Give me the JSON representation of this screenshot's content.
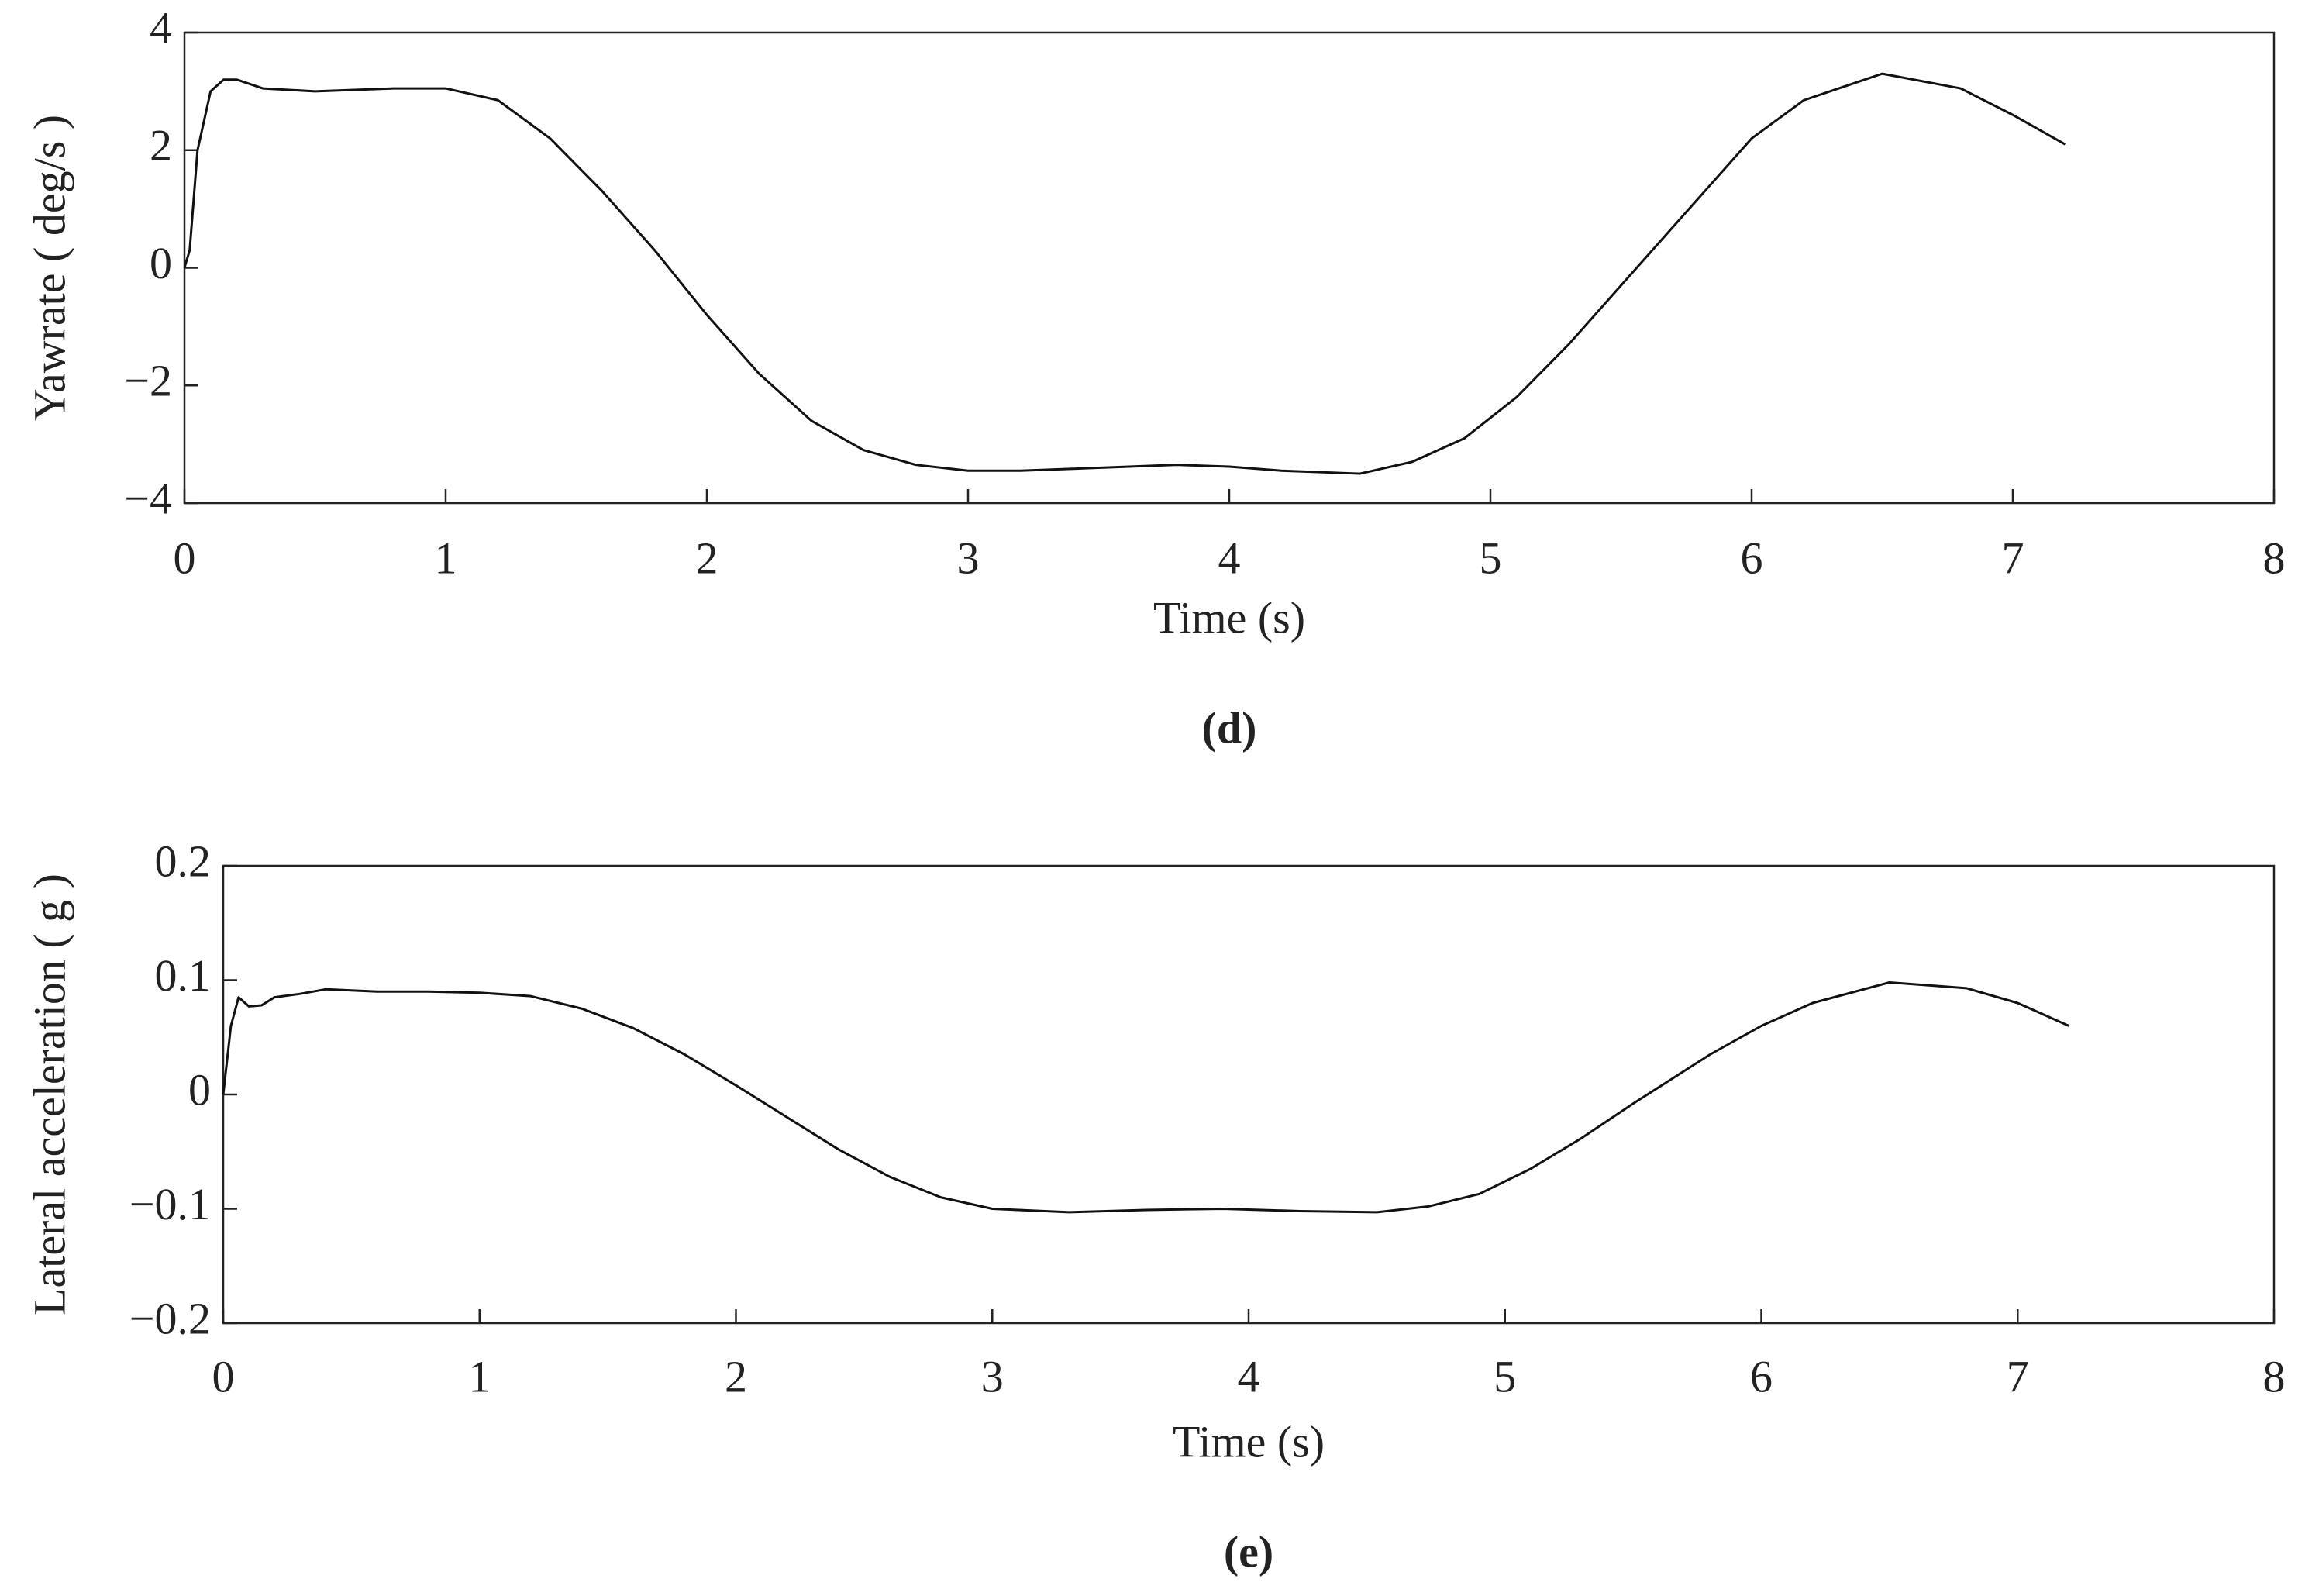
{
  "chart_data": [
    {
      "type": "line",
      "caption": "(d)",
      "xlabel": "Time (s)",
      "ylabel": "Yawrate ( deg/s )",
      "xlim": [
        0,
        8
      ],
      "xticks": [
        0,
        1,
        2,
        3,
        4,
        5,
        6,
        7,
        8
      ],
      "ylim": [
        -4,
        4
      ],
      "yticks": [
        {
          "value": -4,
          "label": "−4"
        },
        {
          "value": -2,
          "label": "−2"
        },
        0,
        2,
        4
      ],
      "grid": false,
      "series": [
        {
          "color": "#111111",
          "x": [
            0,
            0.02,
            0.05,
            0.1,
            0.15,
            0.2,
            0.3,
            0.5,
            0.8,
            1.0,
            1.2,
            1.4,
            1.6,
            1.8,
            2.0,
            2.2,
            2.4,
            2.6,
            2.8,
            3.0,
            3.2,
            3.5,
            3.8,
            4.0,
            4.2,
            4.5,
            4.7,
            4.9,
            5.1,
            5.3,
            5.5,
            5.8,
            6.0,
            6.2,
            6.5,
            6.8,
            7.0,
            7.2
          ],
          "values": [
            0,
            0.3,
            2.0,
            3.0,
            3.2,
            3.2,
            3.05,
            3.0,
            3.05,
            3.05,
            2.85,
            2.2,
            1.3,
            0.3,
            -0.8,
            -1.8,
            -2.6,
            -3.1,
            -3.35,
            -3.45,
            -3.45,
            -3.4,
            -3.35,
            -3.38,
            -3.45,
            -3.5,
            -3.3,
            -2.9,
            -2.2,
            -1.3,
            -0.3,
            1.2,
            2.2,
            2.85,
            3.3,
            3.05,
            2.6,
            2.1
          ]
        }
      ]
    },
    {
      "type": "line",
      "caption": "(e)",
      "xlabel": "Time (s)",
      "ylabel": "Lateral acceleration ( g )",
      "xlim": [
        0,
        8
      ],
      "xticks": [
        0,
        1,
        2,
        3,
        4,
        5,
        6,
        7,
        8
      ],
      "ylim": [
        -0.2,
        0.2
      ],
      "yticks": [
        {
          "value": -0.2,
          "label": "−0.2"
        },
        {
          "value": -0.1,
          "label": "−0.1"
        },
        0,
        0.1,
        0.2
      ],
      "grid": false,
      "series": [
        {
          "color": "#111111",
          "x": [
            0,
            0.03,
            0.06,
            0.1,
            0.15,
            0.2,
            0.3,
            0.4,
            0.6,
            0.8,
            1.0,
            1.2,
            1.4,
            1.6,
            1.8,
            2.0,
            2.2,
            2.4,
            2.6,
            2.8,
            3.0,
            3.3,
            3.6,
            3.9,
            4.2,
            4.5,
            4.7,
            4.9,
            5.1,
            5.3,
            5.5,
            5.8,
            6.0,
            6.2,
            6.5,
            6.8,
            7.0,
            7.2
          ],
          "values": [
            0,
            0.06,
            0.085,
            0.077,
            0.078,
            0.085,
            0.088,
            0.092,
            0.09,
            0.09,
            0.089,
            0.086,
            0.075,
            0.058,
            0.035,
            0.008,
            -0.02,
            -0.048,
            -0.072,
            -0.09,
            -0.1,
            -0.103,
            -0.101,
            -0.1,
            -0.102,
            -0.103,
            -0.098,
            -0.087,
            -0.065,
            -0.038,
            -0.008,
            0.035,
            0.06,
            0.08,
            0.098,
            0.093,
            0.08,
            0.06
          ]
        }
      ]
    }
  ]
}
